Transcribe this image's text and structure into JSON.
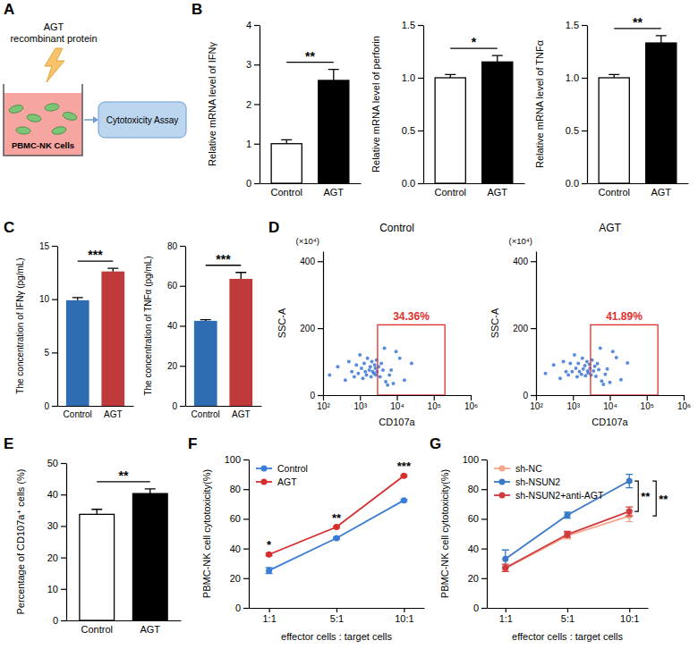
{
  "panel_labels": [
    "A",
    "B",
    "C",
    "D",
    "E",
    "F",
    "G"
  ],
  "diagram": {
    "reagent": [
      "AGT",
      "recombinant protein"
    ],
    "cells": "PBMC-NK Cells",
    "assay": "Cytotoxicity Assay"
  },
  "chart_data": [
    {
      "type": "bar",
      "y_label": "Relative mRNA level of IFNγ",
      "categories": [
        "Control",
        "AGT"
      ],
      "values": [
        1,
        2.6
      ],
      "errors": [
        0.1,
        0.28
      ],
      "colors": [
        "#ffffff",
        "#000000"
      ],
      "ylim": [
        0,
        4
      ],
      "yticks": [
        0,
        1,
        2,
        3,
        4
      ],
      "significance": "**"
    },
    {
      "type": "bar",
      "y_label": "Relative mRNA level of perforin",
      "categories": [
        "Control",
        "AGT"
      ],
      "values": [
        1,
        1.15
      ],
      "errors": [
        0.03,
        0.06
      ],
      "colors": [
        "#ffffff",
        "#000000"
      ],
      "ylim": [
        0,
        1.5
      ],
      "yticks": [
        {
          "value": 0,
          "label": "0.0"
        },
        {
          "value": 0.5,
          "label": "0.5"
        },
        {
          "value": 1,
          "label": "1.0"
        },
        {
          "value": 1.5,
          "label": "1.5"
        }
      ],
      "significance": "*"
    },
    {
      "type": "bar",
      "y_label": "Relative mRNA level of TNFα",
      "categories": [
        "Control",
        "AGT"
      ],
      "values": [
        1,
        1.33
      ],
      "errors": [
        0.03,
        0.07
      ],
      "colors": [
        "#ffffff",
        "#000000"
      ],
      "ylim": [
        0,
        1.5
      ],
      "yticks": [
        {
          "value": 0,
          "label": "0.0"
        },
        {
          "value": 0.5,
          "label": "0.5"
        },
        {
          "value": 1,
          "label": "1.0"
        },
        {
          "value": 1.5,
          "label": "1.5"
        }
      ],
      "significance": "**"
    },
    {
      "type": "bar",
      "y_label": "The concentration of IFNγ (pg/mL)",
      "categories": [
        "Control",
        "AGT"
      ],
      "values": [
        9.9,
        12.6
      ],
      "errors": [
        0.25,
        0.3
      ],
      "colors": [
        "#2e6db4",
        "#c0393b"
      ],
      "ylim": [
        0,
        15
      ],
      "yticks": [
        0,
        5,
        10,
        15
      ],
      "significance": "***"
    },
    {
      "type": "bar",
      "y_label": "The concentration of TNFα (pg/mL)",
      "categories": [
        "Control",
        "AGT"
      ],
      "values": [
        42.5,
        63.5
      ],
      "errors": [
        0.6,
        3.2
      ],
      "colors": [
        "#2e6db4",
        "#c0393b"
      ],
      "ylim": [
        0,
        80
      ],
      "yticks": [
        0,
        20,
        40,
        60,
        80
      ],
      "significance": "***"
    },
    {
      "type": "scatter",
      "title": "Control",
      "x_label": "CD107a",
      "y_label": "SSC-A",
      "y_unit": "(×10⁴)",
      "log": "x",
      "color": "#2f6fd6",
      "xlim": [
        100,
        1000000
      ],
      "xticks": [
        {
          "value": 100,
          "label": "10²"
        },
        {
          "value": 1000,
          "label": "10³"
        },
        {
          "value": 10000,
          "label": "10⁴"
        },
        {
          "value": 100000,
          "label": "10⁵"
        },
        {
          "value": 1000000,
          "label": "10⁶"
        }
      ],
      "ylim": [
        0,
        430
      ],
      "yticks": [
        0,
        200,
        400
      ],
      "x": [
        150,
        250,
        400,
        500,
        600,
        700,
        800,
        900,
        1000,
        1100,
        1200,
        1300,
        1400,
        1500,
        1600,
        1800,
        1900,
        2000,
        2100,
        2200,
        2400,
        2500,
        2600,
        2700,
        2800,
        2900,
        3200,
        3500,
        3800,
        4200,
        4600,
        5000,
        5600,
        6300,
        7000,
        8000,
        9500,
        12000,
        16000,
        25000
      ],
      "values": [
        60,
        85,
        45,
        100,
        70,
        55,
        90,
        65,
        120,
        80,
        50,
        95,
        70,
        60,
        110,
        75,
        85,
        55,
        100,
        70,
        65,
        90,
        80,
        60,
        105,
        70,
        85,
        55,
        95,
        75,
        140,
        40,
        30,
        60,
        75,
        35,
        130,
        110,
        45,
        95
      ],
      "gate": {
        "x": [
          3000,
          200000
        ],
        "y": [
          0,
          210
        ],
        "value": 34.36,
        "label": "34.36%"
      }
    },
    {
      "type": "scatter",
      "title": "AGT",
      "x_label": "CD107a",
      "y_label": "SSC-A",
      "y_unit": "(×10⁴)",
      "log": "x",
      "color": "#2f6fd6",
      "xlim": [
        100,
        1000000
      ],
      "xticks": [
        {
          "value": 100,
          "label": "10²"
        },
        {
          "value": 1000,
          "label": "10³"
        },
        {
          "value": 10000,
          "label": "10⁴"
        },
        {
          "value": 100000,
          "label": "10⁵"
        },
        {
          "value": 1000000,
          "label": "10⁶"
        }
      ],
      "ylim": [
        0,
        430
      ],
      "yticks": [
        0,
        200,
        400
      ],
      "x": [
        180,
        300,
        450,
        550,
        650,
        750,
        850,
        950,
        1100,
        1200,
        1300,
        1400,
        1500,
        1700,
        1800,
        1900,
        2100,
        2200,
        2400,
        2500,
        2600,
        2800,
        2900,
        3100,
        3300,
        3600,
        3900,
        4200,
        4600,
        5000,
        5500,
        6000,
        6700,
        7500,
        8500,
        10000,
        12000,
        15000,
        20000,
        30000
      ],
      "values": [
        65,
        90,
        50,
        100,
        70,
        60,
        95,
        70,
        120,
        80,
        55,
        95,
        70,
        62,
        110,
        78,
        88,
        58,
        100,
        72,
        66,
        92,
        80,
        60,
        105,
        72,
        86,
        56,
        94,
        76,
        140,
        42,
        32,
        62,
        78,
        38,
        130,
        112,
        46,
        96
      ],
      "gate": {
        "x": [
          3000,
          200000
        ],
        "y": [
          0,
          210
        ],
        "value": 41.89,
        "label": "41.89%"
      }
    },
    {
      "type": "bar",
      "y_label": "Percentage of CD107a⁺ cells (%)",
      "categories": [
        "Control",
        "AGT"
      ],
      "values": [
        33.7,
        40.3
      ],
      "errors": [
        1.6,
        1.5
      ],
      "colors": [
        "#ffffff",
        "#000000"
      ],
      "ylim": [
        0,
        50
      ],
      "yticks": [
        0,
        10,
        20,
        30,
        40,
        50
      ],
      "significance": "**"
    },
    {
      "type": "line",
      "y_label": "PBMC-NK cell cytotoxicity(%)",
      "x_label": "effector cells : target cells",
      "categories": [
        "1:1",
        "5:1",
        "10:1"
      ],
      "ylim": [
        0,
        100
      ],
      "yticks": [
        0,
        20,
        40,
        60,
        80,
        100
      ],
      "legend": "top-left",
      "marker": "circle",
      "series": [
        {
          "name": "Control",
          "color": "#3a7dd8",
          "values": [
            25.2,
            47,
            72.5
          ],
          "errors": [
            2,
            0.6,
            0.6
          ]
        },
        {
          "name": "AGT",
          "color": "#d62d2d",
          "values": [
            36,
            54.5,
            89
          ],
          "errors": [
            0.8,
            0.6,
            0.5
          ]
        }
      ],
      "significance": [
        "*",
        "**",
        "***"
      ]
    },
    {
      "type": "line",
      "y_label": "PBMC-NK cell cytotoxicity(%)",
      "x_label": "effector cells : target cells",
      "categories": [
        "1:1",
        "5:1",
        "10:1"
      ],
      "ylim": [
        0,
        100
      ],
      "yticks": [
        0,
        20,
        40,
        60,
        80,
        100
      ],
      "legend": "top-left",
      "marker": "circle",
      "series": [
        {
          "name": "sh-NC",
          "color": "#f4a58a",
          "values": [
            26.5,
            48.5,
            62
          ],
          "errors": [
            2,
            2,
            4
          ]
        },
        {
          "name": "sh-NSUN2",
          "color": "#3a78c8",
          "values": [
            33,
            62.5,
            85.5
          ],
          "errors": [
            6,
            2,
            4.5
          ]
        },
        {
          "name": "sh-NSUN2+anti-AGT",
          "color": "#cf3a3f",
          "values": [
            27,
            49.5,
            65
          ],
          "errors": [
            2.5,
            2,
            3
          ]
        }
      ],
      "annotations": [
        {
          "text": "**",
          "between": [
            "sh-NSUN2",
            "sh-NSUN2+anti-AGT"
          ]
        },
        {
          "text": "**",
          "between": [
            "sh-NSUN2",
            "sh-NC"
          ]
        }
      ]
    }
  ]
}
